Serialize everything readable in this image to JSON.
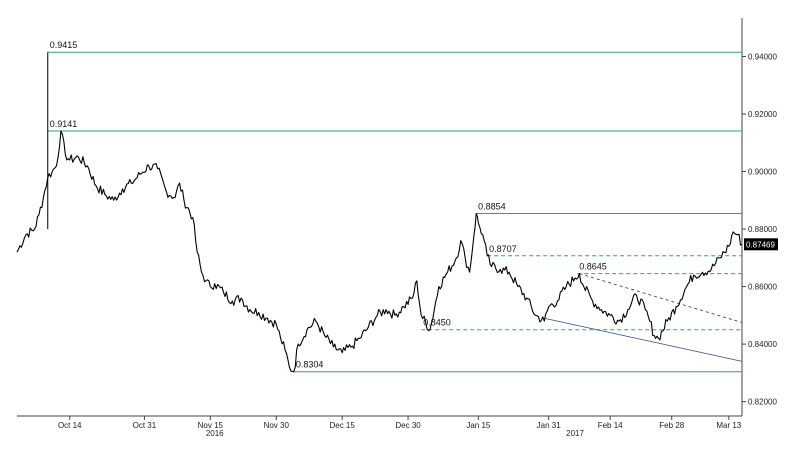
{
  "chart_data": {
    "type": "line",
    "title": "",
    "xlabel": "",
    "ylabel": "",
    "ylim": [
      0.815,
      0.952
    ],
    "y_ticks": [
      {
        "value": 0.82,
        "label": "0.82000"
      },
      {
        "value": 0.84,
        "label": "0.84000"
      },
      {
        "value": 0.86,
        "label": "0.86000"
      },
      {
        "value": 0.88,
        "label": "0.88000"
      },
      {
        "value": 0.9,
        "label": "0.90000"
      },
      {
        "value": 0.92,
        "label": "0.92000"
      },
      {
        "value": 0.94,
        "label": "0.94000"
      }
    ],
    "x_ticks": [
      {
        "day": 12,
        "label": "Oct 14"
      },
      {
        "day": 29,
        "label": "Oct 31"
      },
      {
        "day": 44,
        "label": "Nov 15"
      },
      {
        "day": 59,
        "label": "Nov 30"
      },
      {
        "day": 74,
        "label": "Dec 15"
      },
      {
        "day": 89,
        "label": "Dec 30"
      },
      {
        "day": 105,
        "label": "Jan 15"
      },
      {
        "day": 121,
        "label": "Jan 31"
      },
      {
        "day": 135,
        "label": "Feb 14"
      },
      {
        "day": 149,
        "label": "Feb 28"
      },
      {
        "day": 162,
        "label": "Mar 13"
      }
    ],
    "year_labels": [
      {
        "day": 45,
        "label": "2016"
      },
      {
        "day": 127,
        "label": "2017"
      }
    ],
    "grid": false,
    "series": [
      {
        "color": "#000000",
        "x": [
          0,
          2,
          4,
          5,
          6,
          7,
          8,
          9,
          10,
          11,
          12,
          14,
          16,
          18,
          20,
          22,
          24,
          26,
          28,
          30,
          32,
          34,
          36,
          37,
          38,
          40,
          41,
          42,
          43,
          44,
          45,
          47,
          49,
          51,
          53,
          55,
          57,
          59,
          60,
          61,
          62,
          63,
          64,
          66,
          68,
          70,
          72,
          74,
          76,
          78,
          80,
          82,
          84,
          86,
          88,
          90,
          91,
          92,
          94,
          96,
          98,
          100,
          101,
          102,
          103,
          104,
          104.5,
          105,
          106,
          107,
          108,
          110,
          112,
          114,
          116,
          118,
          120,
          121,
          123,
          125,
          127,
          128,
          129,
          131,
          133,
          135,
          137,
          139,
          141,
          143,
          144,
          145,
          146,
          148,
          150,
          152,
          154,
          156,
          158,
          160,
          162,
          163,
          164,
          165
        ],
        "y": [
          0.872,
          0.878,
          0.88,
          0.885,
          0.891,
          0.898,
          0.9,
          0.902,
          0.9141,
          0.906,
          0.904,
          0.905,
          0.902,
          0.895,
          0.892,
          0.89,
          0.894,
          0.896,
          0.899,
          0.902,
          0.901,
          0.893,
          0.891,
          0.896,
          0.89,
          0.884,
          0.872,
          0.865,
          0.862,
          0.86,
          0.861,
          0.858,
          0.855,
          0.856,
          0.852,
          0.851,
          0.849,
          0.847,
          0.842,
          0.838,
          0.832,
          0.8304,
          0.84,
          0.845,
          0.848,
          0.843,
          0.839,
          0.837,
          0.839,
          0.842,
          0.846,
          0.85,
          0.852,
          0.85,
          0.853,
          0.856,
          0.862,
          0.85,
          0.845,
          0.86,
          0.865,
          0.87,
          0.876,
          0.87,
          0.865,
          0.878,
          0.8854,
          0.882,
          0.878,
          0.8707,
          0.867,
          0.866,
          0.865,
          0.86,
          0.856,
          0.85,
          0.848,
          0.853,
          0.855,
          0.86,
          0.863,
          0.8645,
          0.86,
          0.855,
          0.852,
          0.85,
          0.848,
          0.852,
          0.857,
          0.852,
          0.848,
          0.843,
          0.842,
          0.848,
          0.853,
          0.859,
          0.864,
          0.865,
          0.866,
          0.87,
          0.874,
          0.879,
          0.878,
          0.8747
        ]
      }
    ],
    "horizontal_levels": [
      {
        "value": 0.9415,
        "label": "0.9415",
        "style": "solid",
        "start_day": 7
      },
      {
        "value": 0.9141,
        "label": "0.9141",
        "style": "solid",
        "start_day": 7
      },
      {
        "value": 0.8854,
        "label": "0.8854",
        "style": "solid",
        "start_day": 104.5
      },
      {
        "value": 0.8707,
        "label": "0.8707",
        "style": "dashed",
        "start_day": 107
      },
      {
        "value": 0.8645,
        "label": "0.8645",
        "style": "dashed",
        "start_day": 127.5
      },
      {
        "value": 0.845,
        "label": "0.8450",
        "style": "dashed",
        "start_day": 92
      },
      {
        "value": 0.8304,
        "label": "0.8304",
        "style": "solid",
        "start_day": 63
      }
    ],
    "trend_lines": [
      {
        "x1": 128,
        "y1": 0.8645,
        "x2": 165,
        "y2": 0.8475,
        "style": "dashed",
        "color": "#333333"
      },
      {
        "x1": 120,
        "y1": 0.849,
        "x2": 165,
        "y2": 0.834,
        "style": "solid",
        "color": "#2a4a9a"
      }
    ],
    "spike": {
      "day": 7,
      "value": 0.9415
    },
    "last_value": {
      "value": 0.8747,
      "label": "0.87469"
    },
    "colors": {
      "level_line": "#2aa08a",
      "price": "#000000",
      "badge": "#000000"
    }
  }
}
